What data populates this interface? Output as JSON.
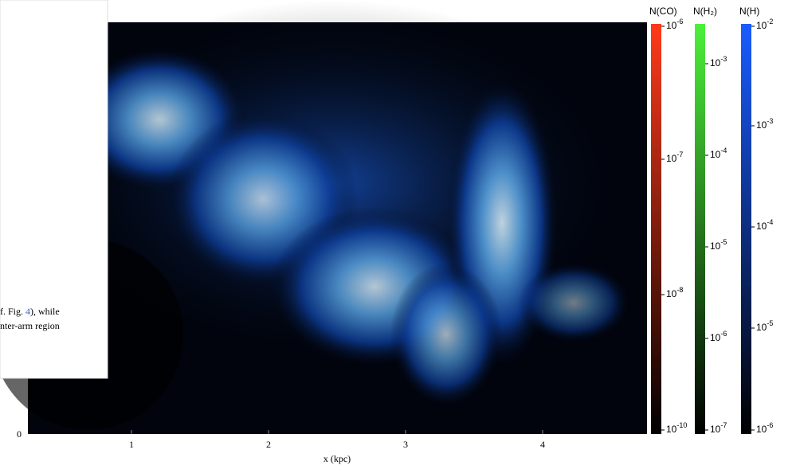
{
  "snippet": {
    "lines": [
      "f. Fig. 4), while",
      "nter-arm region"
    ],
    "link": "4"
  },
  "figure": {
    "y_tick": "0",
    "x_ticks": [
      "1",
      "2",
      "3",
      "4"
    ],
    "x_label": "x (kpc)",
    "colorbars": [
      {
        "title": "N(CO)",
        "color": "#ff3a1a",
        "ticks": [
          {
            "base": "10",
            "exp": "-6"
          },
          {
            "base": "10",
            "exp": "-7"
          },
          {
            "base": "10",
            "exp": "-8"
          },
          {
            "base": "10",
            "exp": "-10"
          }
        ]
      },
      {
        "title": "N(H₂)",
        "color": "#4cf03a",
        "ticks": [
          {
            "base": "10",
            "exp": "-3"
          },
          {
            "base": "10",
            "exp": "-4"
          },
          {
            "base": "10",
            "exp": "-5"
          },
          {
            "base": "10",
            "exp": "-6"
          },
          {
            "base": "10",
            "exp": "-7"
          }
        ]
      },
      {
        "title": "N(H)",
        "color": "#1a5cff",
        "ticks": [
          {
            "base": "10",
            "exp": "-2"
          },
          {
            "base": "10",
            "exp": "-3"
          },
          {
            "base": "10",
            "exp": "-4"
          },
          {
            "base": "10",
            "exp": "-5"
          },
          {
            "base": "10",
            "exp": "-6"
          }
        ]
      }
    ]
  }
}
